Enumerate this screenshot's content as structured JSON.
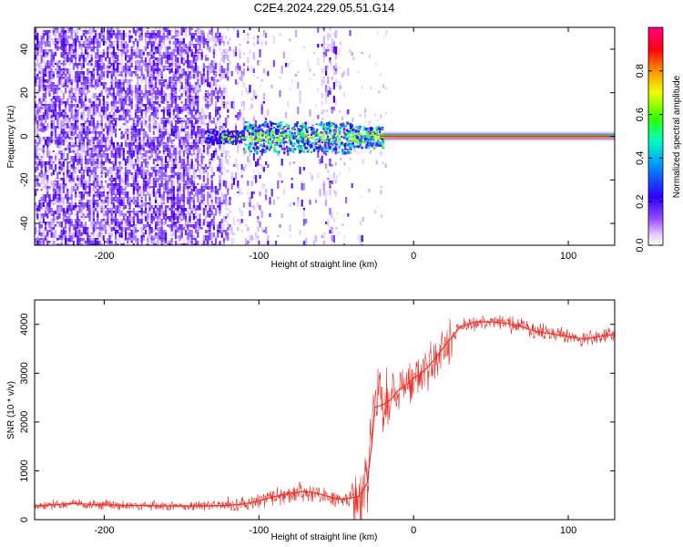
{
  "title": "C2E4.2024.229.05.51.G14",
  "colors": {
    "snr_line": "#e8322c",
    "carrier_line": "#ff2a00",
    "noise_purple": "#5a00ff",
    "background": "#ffffff"
  },
  "chart_data": [
    {
      "type": "heatmap",
      "name": "spectrogram",
      "xlabel": "Height of straight line (km)",
      "ylabel": "Frequency (Hz)",
      "xlim": [
        -245,
        130
      ],
      "ylim": [
        -50,
        50
      ],
      "xticks": [
        -200,
        -100,
        0,
        100
      ],
      "yticks": [
        -40,
        -20,
        0,
        20,
        40
      ],
      "colorbar": {
        "label": "Normalized spectral amplitude",
        "range": [
          0,
          1
        ],
        "ticks": [
          "0.0",
          "0.2",
          "0.4",
          "0.6",
          "0.8"
        ],
        "colormap": "rainbow-to-white (white, lavender, violet, blue, cyan, green, yellow, orange, red, magenta)"
      },
      "features": {
        "noise_region_x": [
          -245,
          -50
        ],
        "carrier_frequency_hz": 0,
        "carrier_clean_from_x": -20,
        "carrier_spread_region_x": [
          -135,
          -20
        ]
      }
    },
    {
      "type": "line",
      "name": "snr",
      "xlabel": "Height of straight line (km)",
      "ylabel": "SNR (10 * v/v)",
      "xlim": [
        -245,
        130
      ],
      "ylim": [
        0,
        4500
      ],
      "xticks": [
        -200,
        -100,
        0,
        100
      ],
      "yticks": [
        0,
        1000,
        2000,
        3000,
        4000
      ],
      "x": [
        -245,
        -220,
        -200,
        -180,
        -160,
        -140,
        -120,
        -110,
        -100,
        -90,
        -80,
        -70,
        -60,
        -50,
        -45,
        -40,
        -35,
        -30,
        -27,
        -25,
        -20,
        -15,
        -10,
        -5,
        0,
        5,
        10,
        15,
        20,
        25,
        30,
        40,
        50,
        60,
        70,
        80,
        90,
        100,
        110,
        120,
        130
      ],
      "y": [
        280,
        330,
        300,
        290,
        280,
        280,
        290,
        320,
        380,
        470,
        540,
        580,
        520,
        430,
        420,
        450,
        480,
        750,
        1550,
        2300,
        2350,
        2450,
        2650,
        2750,
        2900,
        3000,
        3150,
        3350,
        3550,
        3750,
        3950,
        4050,
        4050,
        4020,
        3950,
        3850,
        3800,
        3750,
        3700,
        3750,
        3800
      ]
    }
  ]
}
